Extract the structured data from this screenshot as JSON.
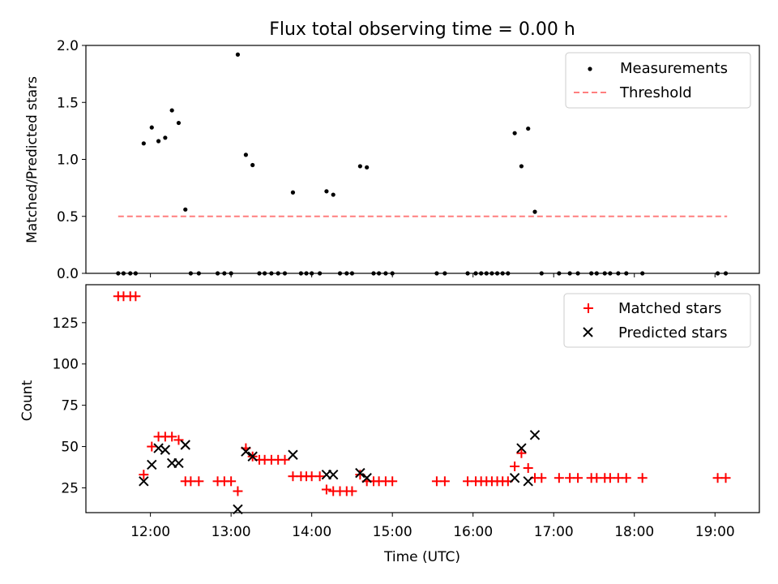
{
  "chart_data": [
    {
      "type": "scatter",
      "title": "Flux total observing time = 0.00 h",
      "xlabel": "",
      "ylabel": "Matched/Predicted stars",
      "xlim": [
        "11:12",
        "19:33"
      ],
      "ylim": [
        0,
        2.0
      ],
      "yticks": [
        0.0,
        0.5,
        1.0,
        1.5,
        2.0
      ],
      "ytick_labels": [
        "0.0",
        "0.5",
        "1.0",
        "1.5",
        "2.0"
      ],
      "grid": false,
      "legend_position": "upper right",
      "legend": [
        {
          "label": "Measurements",
          "marker": "dot",
          "color": "#000000"
        },
        {
          "label": "Threshold",
          "marker": "dashed-line",
          "color": "#ff8080"
        }
      ],
      "threshold": {
        "name": "Threshold",
        "value": 0.5,
        "x_start": "11:36",
        "x_end": "19:09",
        "color": "#ff7f7f",
        "style": "dashed"
      },
      "series": [
        {
          "name": "Measurements",
          "color": "#000000",
          "points": [
            [
              "11:36",
              0
            ],
            [
              "11:40",
              0
            ],
            [
              "11:45",
              0
            ],
            [
              "11:49",
              0
            ],
            [
              "11:55",
              1.14
            ],
            [
              "12:01",
              1.28
            ],
            [
              "12:06",
              1.16
            ],
            [
              "12:11",
              1.19
            ],
            [
              "12:16",
              1.43
            ],
            [
              "12:21",
              1.32
            ],
            [
              "12:26",
              0.56
            ],
            [
              "12:30",
              0
            ],
            [
              "12:36",
              0
            ],
            [
              "12:50",
              0
            ],
            [
              "12:55",
              0
            ],
            [
              "13:00",
              0
            ],
            [
              "13:05",
              1.92
            ],
            [
              "13:11",
              1.04
            ],
            [
              "13:16",
              0.95
            ],
            [
              "13:21",
              0
            ],
            [
              "13:25",
              0
            ],
            [
              "13:30",
              0
            ],
            [
              "13:35",
              0
            ],
            [
              "13:40",
              0
            ],
            [
              "13:46",
              0.71
            ],
            [
              "13:52",
              0
            ],
            [
              "13:56",
              0
            ],
            [
              "14:00",
              0
            ],
            [
              "14:06",
              0
            ],
            [
              "14:11",
              0.72
            ],
            [
              "14:16",
              0.69
            ],
            [
              "14:21",
              0
            ],
            [
              "14:26",
              0
            ],
            [
              "14:30",
              0
            ],
            [
              "14:36",
              0.94
            ],
            [
              "14:41",
              0.93
            ],
            [
              "14:46",
              0
            ],
            [
              "14:50",
              0
            ],
            [
              "14:55",
              0
            ],
            [
              "15:00",
              0
            ],
            [
              "15:33",
              0
            ],
            [
              "15:39",
              0
            ],
            [
              "15:56",
              0
            ],
            [
              "16:02",
              0
            ],
            [
              "16:06",
              0
            ],
            [
              "16:10",
              0
            ],
            [
              "16:14",
              0
            ],
            [
              "16:18",
              0
            ],
            [
              "16:22",
              0
            ],
            [
              "16:26",
              0
            ],
            [
              "16:31",
              1.23
            ],
            [
              "16:36",
              0.94
            ],
            [
              "16:41",
              1.27
            ],
            [
              "16:46",
              0.54
            ],
            [
              "16:51",
              0
            ],
            [
              "17:04",
              0
            ],
            [
              "17:12",
              0
            ],
            [
              "17:18",
              0
            ],
            [
              "17:28",
              0
            ],
            [
              "17:32",
              0
            ],
            [
              "17:38",
              0
            ],
            [
              "17:42",
              0
            ],
            [
              "17:48",
              0
            ],
            [
              "17:54",
              0
            ],
            [
              "18:06",
              0
            ],
            [
              "19:02",
              0
            ],
            [
              "19:08",
              0
            ]
          ]
        }
      ]
    },
    {
      "type": "scatter",
      "title": "",
      "xlabel": "Time (UTC)",
      "ylabel": "Count",
      "xlim": [
        "11:12",
        "19:33"
      ],
      "ylim": [
        10,
        148
      ],
      "xticks": [
        "12:00",
        "13:00",
        "14:00",
        "15:00",
        "16:00",
        "17:00",
        "18:00",
        "19:00"
      ],
      "yticks": [
        25,
        50,
        75,
        100,
        125
      ],
      "ytick_labels": [
        "25",
        "50",
        "75",
        "100",
        "125"
      ],
      "grid": false,
      "legend_position": "upper right",
      "legend": [
        {
          "label": "Matched stars",
          "marker": "plus",
          "color": "#ff0000"
        },
        {
          "label": "Predicted stars",
          "marker": "x",
          "color": "#000000"
        }
      ],
      "series": [
        {
          "name": "Matched stars",
          "marker": "plus",
          "color": "#ff0000",
          "points": [
            [
              "11:36",
              141
            ],
            [
              "11:40",
              141
            ],
            [
              "11:45",
              141
            ],
            [
              "11:49",
              141
            ],
            [
              "11:55",
              33
            ],
            [
              "12:01",
              50
            ],
            [
              "12:06",
              56
            ],
            [
              "12:11",
              56
            ],
            [
              "12:16",
              56
            ],
            [
              "12:21",
              54
            ],
            [
              "12:26",
              29
            ],
            [
              "12:30",
              29
            ],
            [
              "12:36",
              29
            ],
            [
              "12:50",
              29
            ],
            [
              "12:55",
              29
            ],
            [
              "13:00",
              29
            ],
            [
              "13:05",
              23
            ],
            [
              "13:11",
              49
            ],
            [
              "13:16",
              44
            ],
            [
              "13:21",
              42
            ],
            [
              "13:25",
              42
            ],
            [
              "13:30",
              42
            ],
            [
              "13:35",
              42
            ],
            [
              "13:40",
              42
            ],
            [
              "13:46",
              32
            ],
            [
              "13:52",
              32
            ],
            [
              "13:56",
              32
            ],
            [
              "14:00",
              32
            ],
            [
              "14:06",
              32
            ],
            [
              "14:11",
              24
            ],
            [
              "14:16",
              23
            ],
            [
              "14:21",
              23
            ],
            [
              "14:26",
              23
            ],
            [
              "14:30",
              23
            ],
            [
              "14:36",
              33
            ],
            [
              "14:41",
              29
            ],
            [
              "14:46",
              29
            ],
            [
              "14:50",
              29
            ],
            [
              "14:55",
              29
            ],
            [
              "15:00",
              29
            ],
            [
              "15:33",
              29
            ],
            [
              "15:39",
              29
            ],
            [
              "15:56",
              29
            ],
            [
              "16:02",
              29
            ],
            [
              "16:06",
              29
            ],
            [
              "16:10",
              29
            ],
            [
              "16:14",
              29
            ],
            [
              "16:18",
              29
            ],
            [
              "16:22",
              29
            ],
            [
              "16:26",
              29
            ],
            [
              "16:31",
              38
            ],
            [
              "16:36",
              46
            ],
            [
              "16:41",
              37
            ],
            [
              "16:46",
              31
            ],
            [
              "16:51",
              31
            ],
            [
              "17:04",
              31
            ],
            [
              "17:12",
              31
            ],
            [
              "17:18",
              31
            ],
            [
              "17:28",
              31
            ],
            [
              "17:32",
              31
            ],
            [
              "17:38",
              31
            ],
            [
              "17:42",
              31
            ],
            [
              "17:48",
              31
            ],
            [
              "17:54",
              31
            ],
            [
              "18:06",
              31
            ],
            [
              "19:02",
              31
            ],
            [
              "19:08",
              31
            ]
          ]
        },
        {
          "name": "Predicted stars",
          "marker": "x",
          "color": "#000000",
          "points": [
            [
              "11:55",
              29
            ],
            [
              "12:01",
              39
            ],
            [
              "12:06",
              49
            ],
            [
              "12:11",
              48
            ],
            [
              "12:16",
              40
            ],
            [
              "12:21",
              40
            ],
            [
              "12:26",
              51
            ],
            [
              "13:05",
              12
            ],
            [
              "13:11",
              47
            ],
            [
              "13:16",
              44
            ],
            [
              "13:46",
              45
            ],
            [
              "14:11",
              33
            ],
            [
              "14:16",
              33
            ],
            [
              "14:36",
              34
            ],
            [
              "14:41",
              31
            ],
            [
              "16:31",
              31
            ],
            [
              "16:36",
              49
            ],
            [
              "16:41",
              29
            ],
            [
              "16:46",
              57
            ]
          ]
        }
      ]
    }
  ]
}
